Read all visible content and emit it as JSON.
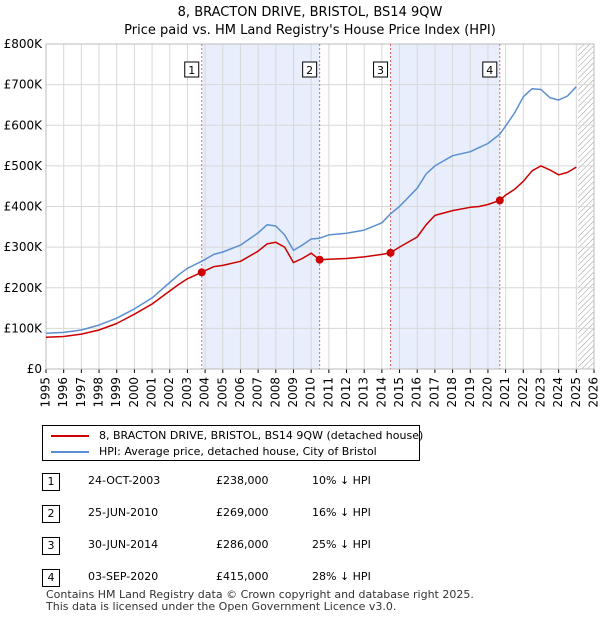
{
  "title_line1": "8, BRACTON DRIVE, BRISTOL, BS14 9QW",
  "title_line2": "Price paid vs. HM Land Registry's House Price Index (HPI)",
  "colors": {
    "property": "#cc0000",
    "hpi": "#5b8fd1",
    "shade": "#e8eefb",
    "grid": "#d8d8d8",
    "marker_line": "#e06666"
  },
  "legend": {
    "property_label": "8, BRACTON DRIVE, BRISTOL, BS14 9QW (detached house)",
    "hpi_label": "HPI: Average price, detached house, City of Bristol"
  },
  "sales": [
    {
      "num": "1",
      "date": "24-OCT-2003",
      "price": "£238,000",
      "delta": "10% ↓ HPI"
    },
    {
      "num": "2",
      "date": "25-JUN-2010",
      "price": "£269,000",
      "delta": "16% ↓ HPI"
    },
    {
      "num": "3",
      "date": "30-JUN-2014",
      "price": "£286,000",
      "delta": "25% ↓ HPI"
    },
    {
      "num": "4",
      "date": "03-SEP-2020",
      "price": "£415,000",
      "delta": "28% ↓ HPI"
    }
  ],
  "footer_line1": "Contains HM Land Registry data © Crown copyright and database right 2025.",
  "footer_line2": "This data is licensed under the Open Government Licence v3.0.",
  "chart_data": {
    "type": "line",
    "title": "8, BRACTON DRIVE, BRISTOL, BS14 9QW",
    "subtitle": "Price paid vs. HM Land Registry's House Price Index (HPI)",
    "xlim": [
      1995,
      2026
    ],
    "ylim": [
      0,
      800000
    ],
    "x_ticks": [
      1995,
      1996,
      1997,
      1998,
      1999,
      2000,
      2001,
      2002,
      2003,
      2004,
      2005,
      2006,
      2007,
      2008,
      2009,
      2010,
      2011,
      2012,
      2013,
      2014,
      2015,
      2016,
      2017,
      2018,
      2019,
      2020,
      2021,
      2022,
      2023,
      2024,
      2025,
      2026
    ],
    "y_ticks": [
      {
        "value": 0,
        "label": "£0"
      },
      {
        "value": 100000,
        "label": "£100K"
      },
      {
        "value": 200000,
        "label": "£200K"
      },
      {
        "value": 300000,
        "label": "£300K"
      },
      {
        "value": 400000,
        "label": "£400K"
      },
      {
        "value": 500000,
        "label": "£500K"
      },
      {
        "value": 600000,
        "label": "£600K"
      },
      {
        "value": 700000,
        "label": "£700K"
      },
      {
        "value": 800000,
        "label": "£800K"
      }
    ],
    "shaded_ranges": [
      [
        2003.81,
        2010.48
      ],
      [
        2014.49,
        2020.67
      ]
    ],
    "hatched_from": 2025.1,
    "sale_markers": [
      {
        "label": "1",
        "x": 2003.81,
        "y": 238000
      },
      {
        "label": "2",
        "x": 2010.48,
        "y": 269000
      },
      {
        "label": "3",
        "x": 2014.49,
        "y": 286000
      },
      {
        "label": "4",
        "x": 2020.67,
        "y": 415000
      }
    ],
    "series": [
      {
        "name": "8, BRACTON DRIVE, BRISTOL, BS14 9QW (detached house)",
        "color": "#cc0000",
        "x": [
          1995.0,
          1996.0,
          1997.0,
          1998.0,
          1999.0,
          2000.0,
          2001.0,
          2002.0,
          2002.5,
          2003.0,
          2003.81,
          2004.5,
          2005.0,
          2006.0,
          2007.0,
          2007.5,
          2008.0,
          2008.5,
          2009.0,
          2009.5,
          2010.0,
          2010.48,
          2011.0,
          2012.0,
          2013.0,
          2014.0,
          2014.49,
          2015.0,
          2016.0,
          2016.5,
          2017.0,
          2018.0,
          2019.0,
          2019.5,
          2020.0,
          2020.67,
          2021.0,
          2021.5,
          2022.0,
          2022.5,
          2023.0,
          2023.5,
          2024.0,
          2024.5,
          2025.0
        ],
        "y": [
          78000,
          80000,
          86000,
          96000,
          112000,
          135000,
          160000,
          192000,
          208000,
          222000,
          238000,
          252000,
          255000,
          265000,
          290000,
          308000,
          312000,
          300000,
          262000,
          272000,
          285000,
          269000,
          270000,
          272000,
          276000,
          282000,
          286000,
          300000,
          325000,
          355000,
          378000,
          390000,
          398000,
          400000,
          405000,
          415000,
          428000,
          442000,
          462000,
          488000,
          500000,
          490000,
          478000,
          484000,
          497000
        ]
      },
      {
        "name": "HPI: Average price, detached house, City of Bristol",
        "color": "#5b8fd1",
        "x": [
          1995.0,
          1996.0,
          1997.0,
          1998.0,
          1999.0,
          2000.0,
          2001.0,
          2002.0,
          2002.5,
          2003.0,
          2003.81,
          2004.5,
          2005.0,
          2006.0,
          2007.0,
          2007.5,
          2008.0,
          2008.5,
          2009.0,
          2009.5,
          2010.0,
          2010.48,
          2011.0,
          2012.0,
          2013.0,
          2014.0,
          2014.49,
          2015.0,
          2016.0,
          2016.5,
          2017.0,
          2018.0,
          2019.0,
          2019.5,
          2020.0,
          2020.67,
          2021.0,
          2021.5,
          2022.0,
          2022.5,
          2023.0,
          2023.5,
          2024.0,
          2024.5,
          2025.0
        ],
        "y": [
          88000,
          90000,
          96000,
          108000,
          125000,
          148000,
          175000,
          213000,
          232000,
          248000,
          265000,
          282000,
          288000,
          305000,
          335000,
          355000,
          352000,
          330000,
          292000,
          305000,
          320000,
          322000,
          330000,
          334000,
          342000,
          360000,
          382000,
          400000,
          445000,
          480000,
          500000,
          525000,
          535000,
          545000,
          555000,
          578000,
          598000,
          630000,
          670000,
          690000,
          688000,
          668000,
          662000,
          672000,
          695000
        ]
      }
    ]
  }
}
